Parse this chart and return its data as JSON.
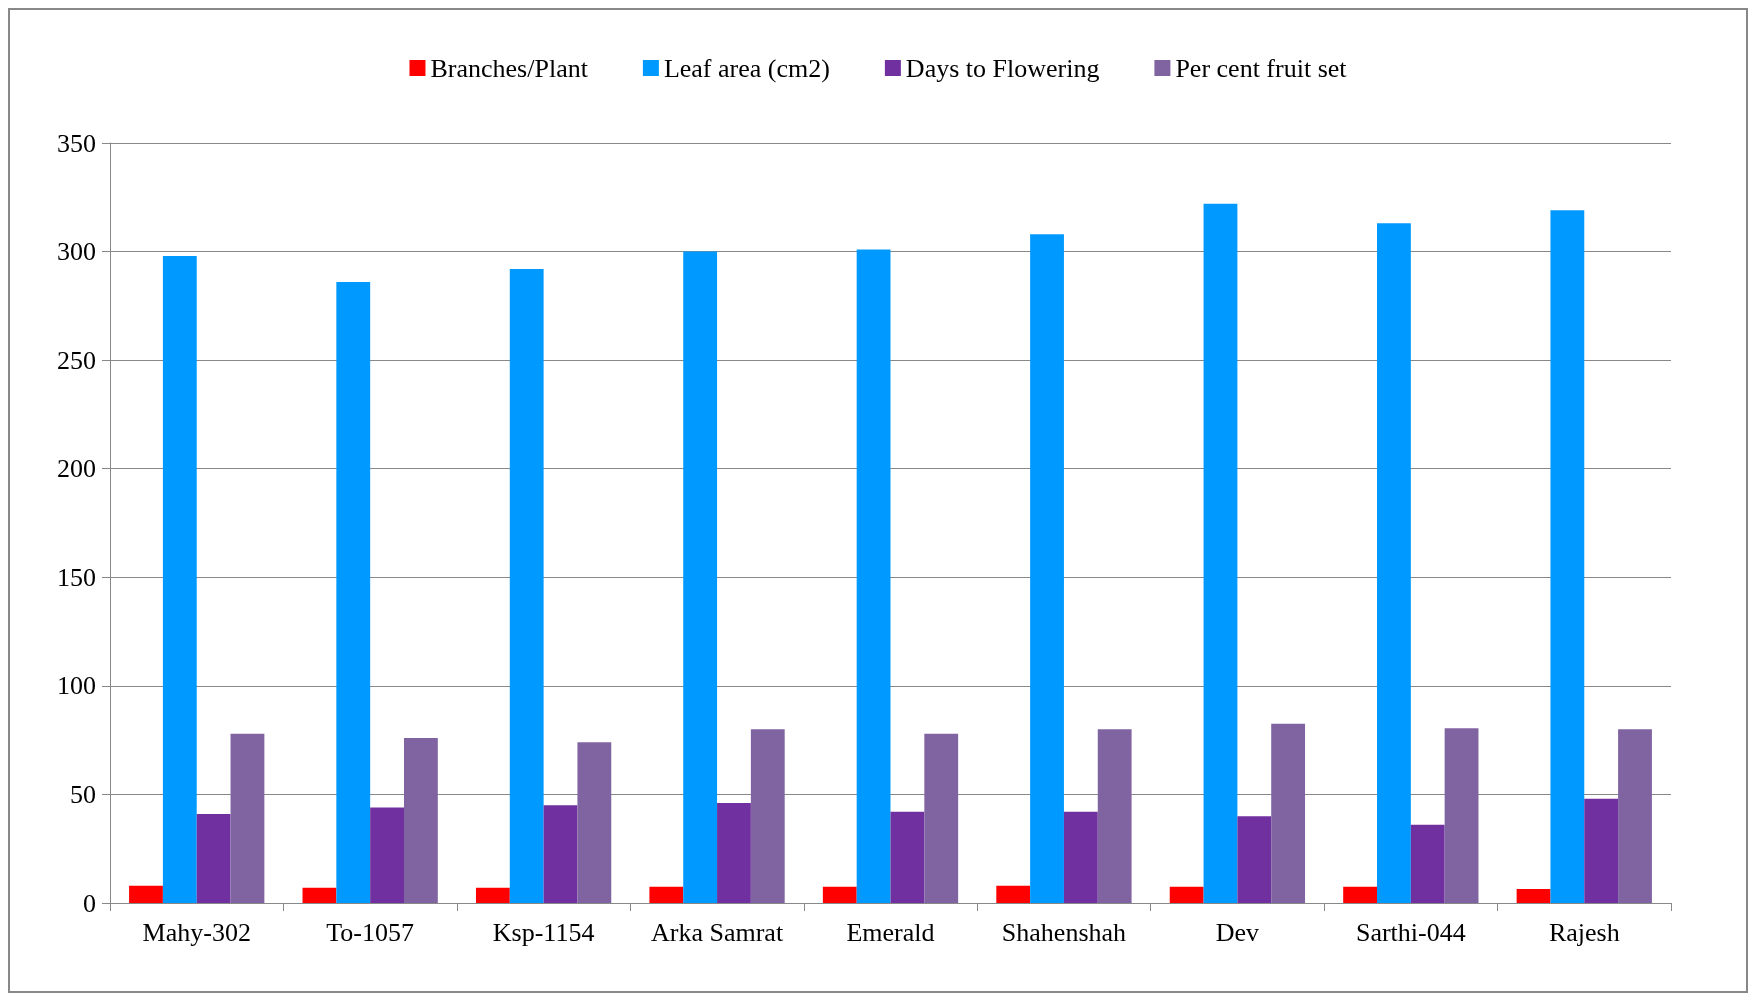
{
  "chart_data": {
    "type": "bar",
    "categories": [
      "Mahy-302",
      "To-1057",
      "Ksp-1154",
      "Arka Samrat",
      "Emerald",
      "Shahenshah",
      "Dev",
      "Sarthi-044",
      "Rajesh"
    ],
    "series": [
      {
        "name": "Branches/Plant",
        "color": "#ff0000",
        "values": [
          8,
          7,
          7,
          7.5,
          7.5,
          8,
          7.5,
          7.5,
          6.5
        ]
      },
      {
        "name": "Leaf area (cm2)",
        "color": "#0099ff",
        "values": [
          298,
          286,
          292,
          300,
          301,
          308,
          322,
          313,
          319
        ]
      },
      {
        "name": "Days to Flowering",
        "color": "#7030a0",
        "values": [
          41,
          44,
          45,
          46,
          42,
          42,
          40,
          36,
          48
        ]
      },
      {
        "name": "Per cent fruit set",
        "color": "#8064a2",
        "values": [
          78,
          76,
          74,
          80,
          78,
          80,
          82.5,
          80.5,
          80
        ]
      }
    ],
    "ylim": [
      0,
      350
    ],
    "yticks": [
      0,
      50,
      100,
      150,
      200,
      250,
      300,
      350
    ],
    "grid": "y",
    "legend": "top"
  }
}
